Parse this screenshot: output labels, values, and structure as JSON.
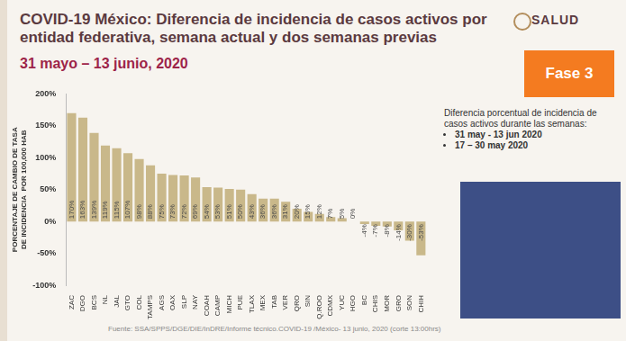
{
  "header": {
    "logo": "SALUD",
    "badge": "Fase 3"
  },
  "note": {
    "text": "Diferencia porcentual de incidencia de  casos activos durante las semanas:",
    "items": [
      "31 may - 13 jun 2020",
      "17 – 30 may 2020"
    ]
  },
  "source": "Fuente: SSA/SPPS/DGE/DIE/InDRE/Informe técnico.COVID-19 /México- 13 junio, 2020 (corte 13:00hrs)",
  "chart_data": {
    "type": "bar",
    "title": "COVID-19 México: Diferencia de incidencia de casos activos por entidad federativa, semana actual y dos semanas previas",
    "subtitle": "31 mayo – 13 junio, 2020",
    "y_label": [
      "PORCENTAJE DE CAMBIO DE TASA",
      "DE INCIDENCIA  POR 100,000 HAB"
    ],
    "categories": [
      "ZAC",
      "DGO",
      "BCS",
      "NL",
      "JAL",
      "GTO",
      "COL",
      "TAMPS",
      "AGS",
      "OAX",
      "SLP",
      "NAY",
      "COAH",
      "CAMP",
      "MICH",
      "PUE",
      "TLAX",
      "MEX",
      "TAB",
      "VER",
      "QRO",
      "SIN",
      "Q.ROO",
      "CDMX",
      "YUC",
      "HGO",
      "BC",
      "CHIS",
      "MOR",
      "GRO",
      "SON",
      "CHIH"
    ],
    "values": [
      170,
      163,
      139,
      119,
      115,
      107,
      98,
      88,
      75,
      73,
      72,
      69,
      54,
      53,
      51,
      50,
      43,
      36,
      36,
      31,
      20,
      15,
      12,
      7,
      5,
      0,
      -4,
      -7,
      -8,
      -14,
      -30,
      -53
    ],
    "value_labels": [
      "170%",
      "163%",
      "139%",
      "119%",
      "115%",
      "107%",
      "98%",
      "88%",
      "75%",
      "73%",
      "72%",
      "69%",
      "54%",
      "53%",
      "51%",
      "50%",
      "43%",
      "36%",
      "36%",
      "31%",
      "20%",
      "15%",
      "12%",
      "7%",
      "5%",
      "0%",
      "-4%",
      "-7%",
      "-8%",
      "-14%",
      "-30%",
      "-53%"
    ],
    "color": "#c9b88a",
    "ylim": [
      -100,
      200
    ],
    "yticks": [
      {
        "value": -100,
        "label": "-100%"
      },
      {
        "value": -50,
        "label": "-50%"
      },
      {
        "value": 0,
        "label": "0%"
      },
      {
        "value": 50,
        "label": "50%"
      },
      {
        "value": 100,
        "label": "100%"
      },
      {
        "value": 150,
        "label": "150%"
      },
      {
        "value": 200,
        "label": "200%"
      }
    ],
    "grid": false,
    "data_labels": true
  }
}
